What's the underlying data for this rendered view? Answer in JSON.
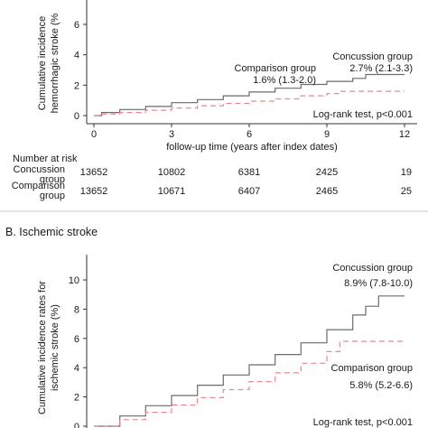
{
  "chart_data": [
    {
      "type": "line",
      "panel": "A",
      "title": "",
      "xlabel": "follow-up time (years after index dates)",
      "ylabel": "Cumulative incidence rates for hemorrhagic stroke (%)",
      "ylabel_lines": [
        "Cumulative incidence",
        "hemorrhagic stroke (%"
      ],
      "xlim": [
        0,
        12
      ],
      "ylim": [
        -0.5,
        7.5
      ],
      "x_ticks": [
        0,
        3,
        6,
        9,
        12
      ],
      "y_ticks": [
        0,
        2,
        4,
        6
      ],
      "grid": false,
      "series": [
        {
          "name": "Concussion group",
          "style": "solid",
          "color": "#6b6b6b",
          "x": [
            0,
            0.3,
            1,
            2,
            3,
            4,
            5,
            6,
            7,
            8,
            9,
            10,
            10.5,
            12
          ],
          "y": [
            0,
            0.2,
            0.4,
            0.6,
            0.85,
            1.05,
            1.3,
            1.55,
            1.8,
            2.05,
            2.25,
            2.45,
            2.7,
            2.7
          ]
        },
        {
          "name": "Comparison group",
          "style": "dashed",
          "color": "#e8898f",
          "x": [
            0,
            0.3,
            1,
            2,
            3,
            4,
            5,
            6,
            7,
            8,
            9,
            9.5,
            12
          ],
          "y": [
            0,
            0.1,
            0.2,
            0.35,
            0.5,
            0.65,
            0.8,
            0.95,
            1.1,
            1.3,
            1.45,
            1.6,
            1.6
          ]
        }
      ],
      "annotations": {
        "concussion_name": "Concussion group",
        "concussion_value": "2.7% (2.1-3.3)",
        "comparison_name": "Comparison group",
        "comparison_value": "1.6% (1.3-2.0)",
        "logrank": "Log-rank test, p<0.001"
      },
      "risk_table": {
        "header": "Number at risk",
        "rows": [
          {
            "label_lines": [
              "Concussion",
              "group"
            ],
            "values": [
              "13652",
              "10802",
              "6381",
              "2425",
              "19"
            ]
          },
          {
            "label_lines": [
              "Comparison",
              "group"
            ],
            "values": [
              "13652",
              "10671",
              "6407",
              "2465",
              "25"
            ]
          }
        ]
      }
    },
    {
      "type": "line",
      "panel": "B",
      "title": "B. Ischemic stroke",
      "xlabel": "",
      "ylabel": "Cumulative incidence rates for ischemic stroke (%)",
      "ylabel_lines": [
        "Cumulative incidence rates for",
        "ischemic stroke (%)"
      ],
      "xlim": [
        0,
        12
      ],
      "ylim": [
        -0.3,
        11
      ],
      "x_ticks": [],
      "y_ticks": [
        0,
        2,
        4,
        6,
        8,
        10
      ],
      "grid": false,
      "series": [
        {
          "name": "Concussion group",
          "style": "solid",
          "color": "#6b6b6b",
          "x": [
            0,
            1,
            2,
            3,
            4,
            5,
            6,
            7,
            8,
            9,
            10,
            10.5,
            11,
            12
          ],
          "y": [
            0,
            0.7,
            1.4,
            2.1,
            2.8,
            3.5,
            4.2,
            4.9,
            5.7,
            6.6,
            7.6,
            8.2,
            8.9,
            8.9
          ]
        },
        {
          "name": "Comparison group",
          "style": "dashed",
          "color": "#e8898f",
          "x": [
            0,
            1,
            2,
            3,
            4,
            5,
            6,
            7,
            8,
            9,
            9.5,
            12
          ],
          "y": [
            0,
            0.45,
            0.95,
            1.45,
            1.95,
            2.5,
            3.05,
            3.65,
            4.3,
            5.1,
            5.8,
            5.8
          ]
        }
      ],
      "annotations": {
        "concussion_name": "Concussion group",
        "concussion_value": "8.9% (7.8-10.0)",
        "comparison_name": "Comparison group",
        "comparison_value": "5.8% (5.2-6.6)",
        "logrank": "Log-rank test, p<0.001"
      }
    }
  ]
}
